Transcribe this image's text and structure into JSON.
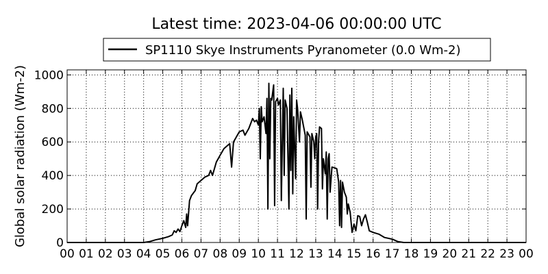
{
  "chart_data": {
    "type": "line",
    "title": "Latest time: 2023-04-06 00:00:00 UTC",
    "y_label": "Global solar radiation (Wm-2)",
    "legend": "top",
    "grid": true,
    "xlim": [
      0,
      24
    ],
    "ylim": [
      0,
      1030
    ],
    "xticks": [
      {
        "value": 0,
        "label": "00"
      },
      {
        "value": 1,
        "label": "01"
      },
      {
        "value": 2,
        "label": "02"
      },
      {
        "value": 3,
        "label": "03"
      },
      {
        "value": 4,
        "label": "04"
      },
      {
        "value": 5,
        "label": "05"
      },
      {
        "value": 6,
        "label": "06"
      },
      {
        "value": 7,
        "label": "07"
      },
      {
        "value": 8,
        "label": "08"
      },
      {
        "value": 9,
        "label": "09"
      },
      {
        "value": 10,
        "label": "10"
      },
      {
        "value": 11,
        "label": "11"
      },
      {
        "value": 12,
        "label": "12"
      },
      {
        "value": 13,
        "label": "13"
      },
      {
        "value": 14,
        "label": "14"
      },
      {
        "value": 15,
        "label": "15"
      },
      {
        "value": 16,
        "label": "16"
      },
      {
        "value": 17,
        "label": "17"
      },
      {
        "value": 18,
        "label": "18"
      },
      {
        "value": 19,
        "label": "19"
      },
      {
        "value": 20,
        "label": "20"
      },
      {
        "value": 21,
        "label": "21"
      },
      {
        "value": 22,
        "label": "22"
      },
      {
        "value": 23,
        "label": "23"
      },
      {
        "value": 24,
        "label": "00"
      }
    ],
    "yticks": [
      0,
      200,
      400,
      600,
      800,
      1000
    ],
    "x": [
      0,
      4.0,
      4.3,
      4.6,
      5.0,
      5.3,
      5.5,
      5.6,
      5.7,
      5.8,
      5.9,
      6.0,
      6.1,
      6.2,
      6.25,
      6.3,
      6.4,
      6.5,
      6.7,
      6.8,
      7.0,
      7.2,
      7.4,
      7.5,
      7.6,
      7.8,
      8.0,
      8.2,
      8.4,
      8.5,
      8.6,
      8.7,
      8.9,
      9.0,
      9.2,
      9.3,
      9.5,
      9.7,
      9.8,
      9.9,
      10.0,
      10.05,
      10.1,
      10.15,
      10.2,
      10.3,
      10.4,
      10.45,
      10.5,
      10.55,
      10.6,
      10.65,
      10.7,
      10.8,
      10.85,
      10.9,
      11.0,
      11.05,
      11.15,
      11.2,
      11.3,
      11.35,
      11.4,
      11.5,
      11.6,
      11.65,
      11.7,
      11.75,
      11.8,
      11.85,
      11.95,
      12.0,
      12.05,
      12.15,
      12.2,
      12.3,
      12.35,
      12.45,
      12.5,
      12.55,
      12.6,
      12.7,
      12.75,
      12.8,
      12.9,
      12.95,
      13.0,
      13.05,
      13.1,
      13.15,
      13.2,
      13.3,
      13.35,
      13.4,
      13.5,
      13.55,
      13.6,
      13.65,
      13.7,
      13.75,
      13.85,
      14.0,
      14.1,
      14.2,
      14.25,
      14.3,
      14.35,
      14.4,
      14.5,
      14.6,
      14.65,
      14.7,
      14.8,
      14.9,
      15.0,
      15.1,
      15.2,
      15.3,
      15.4,
      15.5,
      15.6,
      15.7,
      15.8,
      16.0,
      16.3,
      16.6,
      17.0,
      17.3,
      17.6,
      24.0
    ],
    "series": [
      {
        "name": "SP1110 Skye Instruments Pyranometer (0.0 Wm-2)",
        "color": "#000000",
        "values": [
          0,
          0,
          5,
          15,
          25,
          35,
          45,
          70,
          60,
          80,
          65,
          100,
          130,
          90,
          170,
          100,
          250,
          280,
          310,
          350,
          370,
          390,
          400,
          430,
          400,
          480,
          520,
          560,
          580,
          590,
          450,
          600,
          640,
          660,
          670,
          640,
          680,
          740,
          720,
          730,
          700,
          800,
          500,
          810,
          720,
          750,
          650,
          860,
          200,
          950,
          500,
          860,
          850,
          940,
          220,
          840,
          860,
          820,
          850,
          250,
          920,
          400,
          850,
          800,
          200,
          880,
          430,
          920,
          290,
          750,
          380,
          850,
          800,
          600,
          780,
          730,
          700,
          640,
          140,
          660,
          650,
          630,
          330,
          650,
          600,
          500,
          630,
          650,
          200,
          600,
          690,
          680,
          320,
          500,
          410,
          540,
          140,
          500,
          530,
          300,
          450,
          445,
          440,
          360,
          100,
          370,
          90,
          360,
          300,
          270,
          170,
          230,
          180,
          60,
          110,
          70,
          160,
          155,
          100,
          140,
          165,
          120,
          70,
          60,
          50,
          30,
          20,
          5,
          0,
          0
        ]
      }
    ]
  }
}
